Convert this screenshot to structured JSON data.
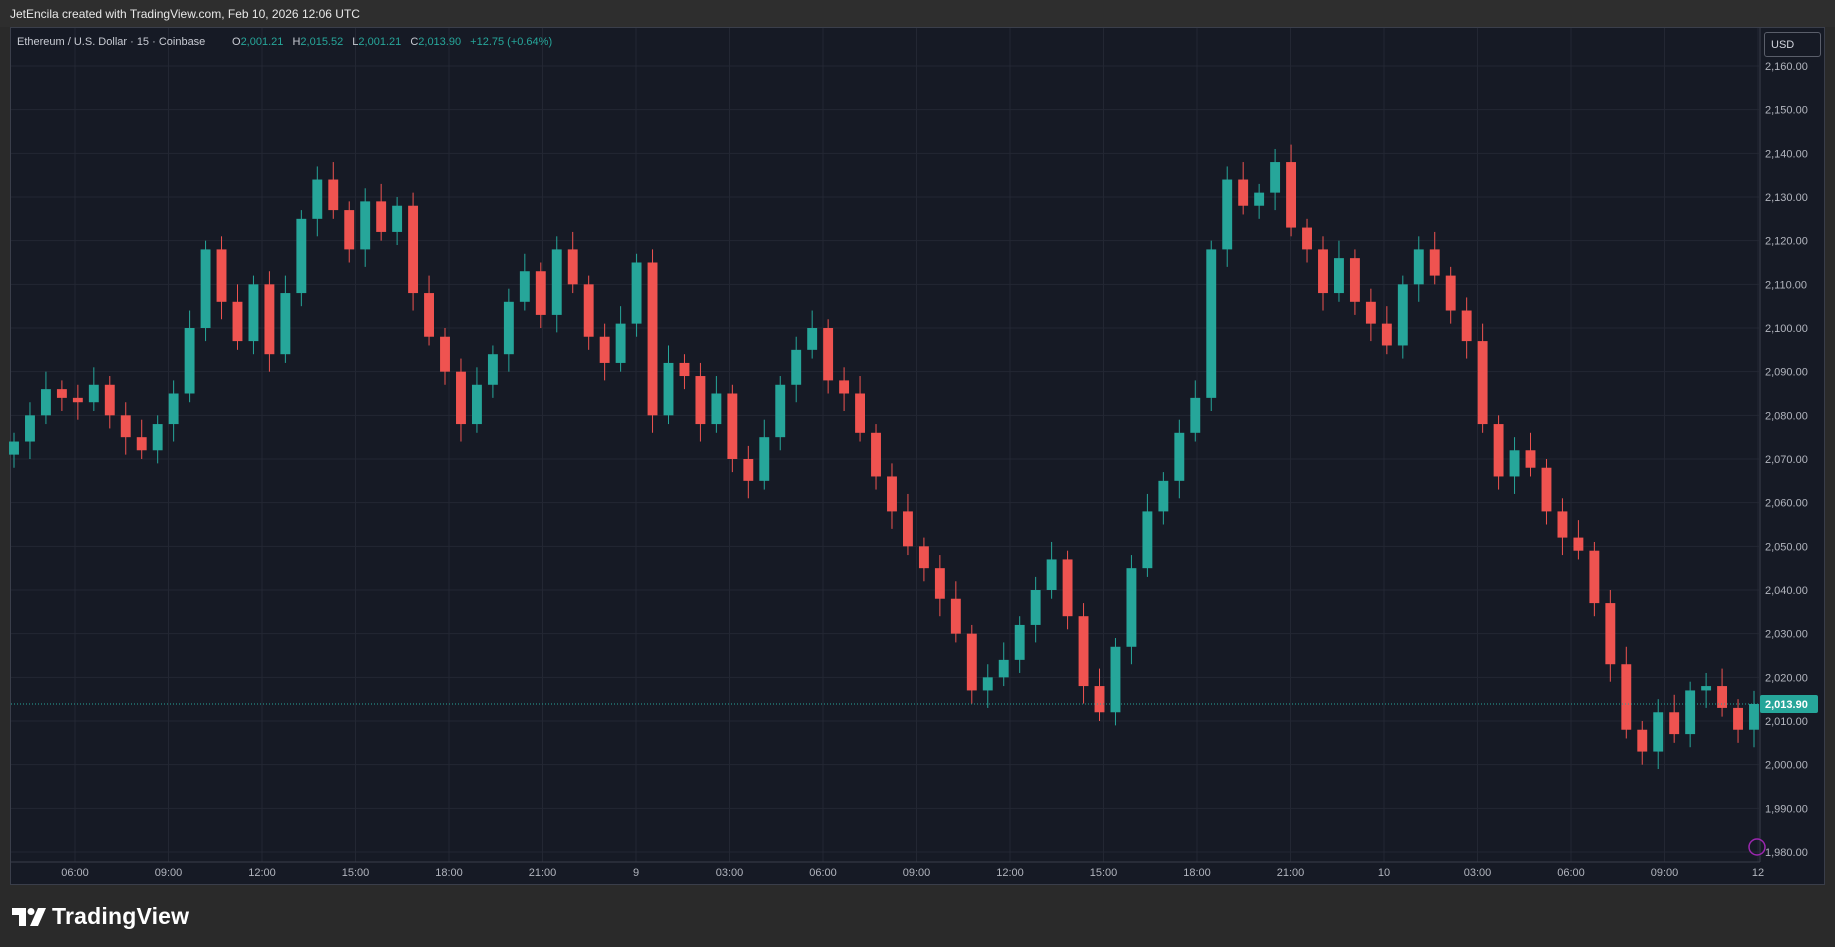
{
  "header": {
    "text": "JetEncila created with TradingView.com, Feb 10, 2026 12:06 UTC"
  },
  "legend": {
    "symbol": "Ethereum / U.S. Dollar · 15 · Coinbase",
    "o_label": "O",
    "o_value": "2,001.21",
    "h_label": "H",
    "h_value": "2,015.52",
    "l_label": "L",
    "l_value": "2,001.21",
    "c_label": "C",
    "c_value": "2,013.90",
    "change": "+12.75 (+0.64%)"
  },
  "currency": "USD",
  "last_price_label": "2,013.90",
  "brand": "TradingView",
  "colors": {
    "up": "#26a69a",
    "down": "#ef5350",
    "background": "#161a25",
    "grid": "#232733"
  },
  "chart_data": {
    "type": "candlestick",
    "symbol": "ETH/USD",
    "interval": "15",
    "ylim": [
      1980,
      2160
    ],
    "y_ticks": [
      1980,
      1990,
      2000,
      2010,
      2020,
      2030,
      2040,
      2050,
      2060,
      2070,
      2080,
      2090,
      2100,
      2110,
      2120,
      2130,
      2140,
      2150,
      2160
    ],
    "y_tick_labels": [
      "1,980.00",
      "1,990.00",
      "2,000.00",
      "2,010.00",
      "2,020.00",
      "2,030.00",
      "2,040.00",
      "2,050.00",
      "2,060.00",
      "2,070.00",
      "2,080.00",
      "2,090.00",
      "2,100.00",
      "2,110.00",
      "2,120.00",
      "2,130.00",
      "2,140.00",
      "2,150.00",
      "2,160.00"
    ],
    "x_tick_labels": [
      "06:00",
      "09:00",
      "12:00",
      "15:00",
      "18:00",
      "21:00",
      "9",
      "03:00",
      "06:00",
      "09:00",
      "12:00",
      "15:00",
      "18:00",
      "21:00",
      "10",
      "03:00",
      "06:00",
      "09:00",
      "12"
    ],
    "last_price": 2013.9,
    "grid": true,
    "close": [
      2074,
      2080,
      2086,
      2084,
      2083,
      2087,
      2080,
      2075,
      2072,
      2078,
      2085,
      2100,
      2118,
      2106,
      2097,
      2110,
      2094,
      2108,
      2125,
      2134,
      2127,
      2118,
      2129,
      2122,
      2128,
      2108,
      2098,
      2090,
      2078,
      2087,
      2094,
      2106,
      2113,
      2103,
      2118,
      2110,
      2098,
      2092,
      2101,
      2115,
      2080,
      2092,
      2089,
      2078,
      2085,
      2070,
      2065,
      2075,
      2087,
      2095,
      2100,
      2088,
      2085,
      2076,
      2066,
      2058,
      2050,
      2045,
      2038,
      2030,
      2017,
      2020,
      2024,
      2032,
      2040,
      2047,
      2034,
      2018,
      2012,
      2027,
      2045,
      2058,
      2065,
      2076,
      2084,
      2118,
      2134,
      2128,
      2131,
      2138,
      2123,
      2118,
      2108,
      2116,
      2106,
      2101,
      2096,
      2110,
      2118,
      2112,
      2104,
      2097,
      2078,
      2066,
      2072,
      2068,
      2058,
      2052,
      2049,
      2037,
      2023,
      2008,
      2003,
      2012,
      2007,
      2017,
      2018,
      2013,
      2008,
      2013.9
    ]
  }
}
